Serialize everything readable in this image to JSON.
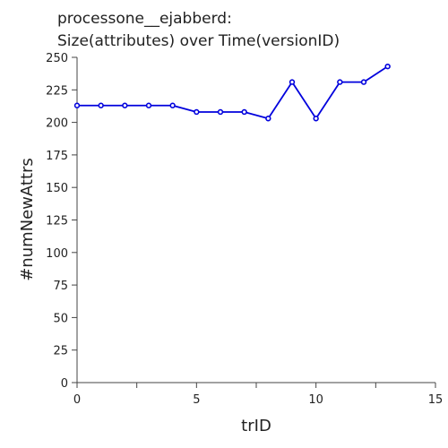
{
  "chart_data": {
    "type": "line",
    "title_lines": [
      "processone__ejabberd:",
      "Size(attributes) over Time(versionID)"
    ],
    "xlabel": "trID",
    "ylabel": "#numNewAttrs",
    "xlim": [
      0,
      15
    ],
    "ylim": [
      0,
      250
    ],
    "x_ticks": [
      0,
      2.5,
      5,
      7.5,
      10,
      12.5,
      15
    ],
    "x_tick_labels": [
      "0",
      "",
      "5",
      "",
      "10",
      "",
      "15"
    ],
    "y_ticks": [
      0,
      25,
      50,
      75,
      100,
      125,
      150,
      175,
      200,
      225,
      250
    ],
    "y_tick_labels": [
      "0",
      "25",
      "50",
      "75",
      "100",
      "125",
      "150",
      "175",
      "200",
      "225",
      "250"
    ],
    "grid": false,
    "series": [
      {
        "color": "#0000dd",
        "x": [
          0,
          1,
          2,
          3,
          4,
          5,
          6,
          7,
          8,
          9,
          10,
          11,
          12,
          13
        ],
        "y": [
          213,
          213,
          213,
          213,
          213,
          208,
          208,
          208,
          203,
          231,
          203,
          231,
          231,
          243
        ]
      }
    ]
  }
}
